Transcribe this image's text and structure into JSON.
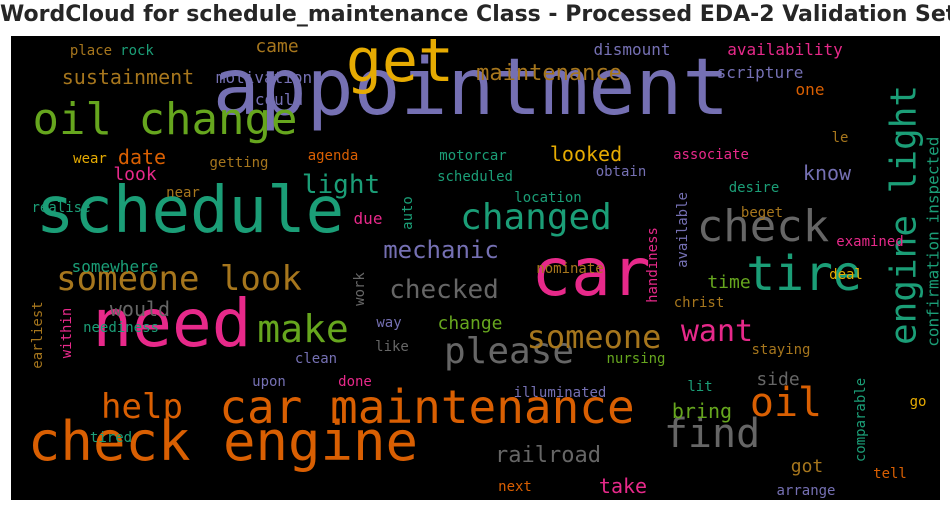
{
  "title": "WordCloud for schedule_maintenance Class - Processed EDA-2 Validation Set",
  "chart_data": {
    "type": "wordcloud",
    "background": "#000000",
    "palette": {
      "purple": "#7570b3",
      "green": "#1b9e77",
      "orange": "#d95f02",
      "pink": "#e7298a",
      "lime": "#66a61e",
      "gold": "#e6ab02",
      "brown": "#a6761d",
      "gray": "#666666"
    },
    "words": [
      {
        "text": "appointment",
        "color": "purple",
        "rotate": false
      },
      {
        "text": "schedule",
        "color": "green",
        "rotate": false
      },
      {
        "text": "need",
        "color": "pink",
        "rotate": false
      },
      {
        "text": "car",
        "color": "pink",
        "rotate": false
      },
      {
        "text": "check engine",
        "color": "orange",
        "rotate": false
      },
      {
        "text": "get",
        "color": "gold",
        "rotate": false
      },
      {
        "text": "engine light",
        "color": "green",
        "rotate": true
      },
      {
        "text": "car maintenance",
        "color": "orange",
        "rotate": false
      },
      {
        "text": "oil change",
        "color": "lime",
        "rotate": false
      },
      {
        "text": "check",
        "color": "gray",
        "rotate": false
      },
      {
        "text": "tire",
        "color": "green",
        "rotate": false
      },
      {
        "text": "someone look",
        "color": "brown",
        "rotate": false
      },
      {
        "text": "changed",
        "color": "green",
        "rotate": false
      },
      {
        "text": "make",
        "color": "lime",
        "rotate": false
      },
      {
        "text": "please",
        "color": "gray",
        "rotate": false
      },
      {
        "text": "find",
        "color": "gray",
        "rotate": false
      },
      {
        "text": "help",
        "color": "orange",
        "rotate": false
      },
      {
        "text": "oil",
        "color": "orange",
        "rotate": false
      },
      {
        "text": "someone",
        "color": "brown",
        "rotate": false
      },
      {
        "text": "maintenance",
        "color": "brown",
        "rotate": false
      },
      {
        "text": "checked",
        "color": "gray",
        "rotate": false
      },
      {
        "text": "want",
        "color": "pink",
        "rotate": false
      },
      {
        "text": "light",
        "color": "green",
        "rotate": false
      },
      {
        "text": "mechanic",
        "color": "purple",
        "rotate": false
      },
      {
        "text": "sustainment",
        "color": "brown",
        "rotate": false
      },
      {
        "text": "railroad",
        "color": "gray",
        "rotate": false
      },
      {
        "text": "looked",
        "color": "gold",
        "rotate": false
      },
      {
        "text": "know",
        "color": "purple",
        "rotate": false
      },
      {
        "text": "date",
        "color": "orange",
        "rotate": false
      },
      {
        "text": "would",
        "color": "gray",
        "rotate": false
      },
      {
        "text": "time",
        "color": "lime",
        "rotate": false
      },
      {
        "text": "came",
        "color": "brown",
        "rotate": false
      },
      {
        "text": "bring",
        "color": "lime",
        "rotate": false
      },
      {
        "text": "got",
        "color": "brown",
        "rotate": false
      },
      {
        "text": "take",
        "color": "pink",
        "rotate": false
      },
      {
        "text": "side",
        "color": "gray",
        "rotate": false
      },
      {
        "text": "change",
        "color": "lime",
        "rotate": false
      },
      {
        "text": "look",
        "color": "pink",
        "rotate": false
      },
      {
        "text": "somewhere",
        "color": "green",
        "rotate": false
      },
      {
        "text": "inspected",
        "color": "green",
        "rotate": true
      },
      {
        "text": "confirmation",
        "color": "green",
        "rotate": true
      },
      {
        "text": "availability",
        "color": "pink",
        "rotate": false
      },
      {
        "text": "dismount",
        "color": "purple",
        "rotate": false
      },
      {
        "text": "scripture",
        "color": "purple",
        "rotate": false
      },
      {
        "text": "motivation",
        "color": "purple",
        "rotate": false
      },
      {
        "text": "place",
        "color": "brown",
        "rotate": false
      },
      {
        "text": "rock",
        "color": "green",
        "rotate": false
      },
      {
        "text": "could",
        "color": "purple",
        "rotate": false
      },
      {
        "text": "one",
        "color": "orange",
        "rotate": false
      },
      {
        "text": "le",
        "color": "brown",
        "rotate": false
      },
      {
        "text": "associate",
        "color": "pink",
        "rotate": false
      },
      {
        "text": "wear",
        "color": "gold",
        "rotate": false
      },
      {
        "text": "getting",
        "color": "brown",
        "rotate": false
      },
      {
        "text": "agenda",
        "color": "orange",
        "rotate": false
      },
      {
        "text": "motorcar",
        "color": "green",
        "rotate": false
      },
      {
        "text": "obtain",
        "color": "purple",
        "rotate": false
      },
      {
        "text": "scheduled",
        "color": "green",
        "rotate": false
      },
      {
        "text": "desire",
        "color": "green",
        "rotate": false
      },
      {
        "text": "near",
        "color": "brown",
        "rotate": false
      },
      {
        "text": "location",
        "color": "green",
        "rotate": false
      },
      {
        "text": "realise",
        "color": "green",
        "rotate": false
      },
      {
        "text": "auto",
        "color": "green",
        "rotate": true
      },
      {
        "text": "available",
        "color": "purple",
        "rotate": true
      },
      {
        "text": "handiness",
        "color": "pink",
        "rotate": true
      },
      {
        "text": "beget",
        "color": "brown",
        "rotate": false
      },
      {
        "text": "due",
        "color": "pink",
        "rotate": false
      },
      {
        "text": "examined",
        "color": "pink",
        "rotate": false
      },
      {
        "text": "nominate",
        "color": "brown",
        "rotate": false
      },
      {
        "text": "deal",
        "color": "gold",
        "rotate": false
      },
      {
        "text": "work",
        "color": "gray",
        "rotate": true
      },
      {
        "text": "christ",
        "color": "brown",
        "rotate": false
      },
      {
        "text": "earliest",
        "color": "brown",
        "rotate": true
      },
      {
        "text": "neediness",
        "color": "green",
        "rotate": false
      },
      {
        "text": "way",
        "color": "purple",
        "rotate": false
      },
      {
        "text": "within",
        "color": "pink",
        "rotate": true
      },
      {
        "text": "like",
        "color": "gray",
        "rotate": false
      },
      {
        "text": "staying",
        "color": "brown",
        "rotate": false
      },
      {
        "text": "clean",
        "color": "purple",
        "rotate": false
      },
      {
        "text": "nursing",
        "color": "lime",
        "rotate": false
      },
      {
        "text": "upon",
        "color": "purple",
        "rotate": false
      },
      {
        "text": "done",
        "color": "pink",
        "rotate": false
      },
      {
        "text": "illuminated",
        "color": "purple",
        "rotate": false
      },
      {
        "text": "lit",
        "color": "green",
        "rotate": false
      },
      {
        "text": "comparable",
        "color": "green",
        "rotate": true
      },
      {
        "text": "go",
        "color": "gold",
        "rotate": false
      },
      {
        "text": "tired",
        "color": "green",
        "rotate": false
      },
      {
        "text": "next",
        "color": "orange",
        "rotate": false
      },
      {
        "text": "arrange",
        "color": "purple",
        "rotate": false
      },
      {
        "text": "tell",
        "color": "orange",
        "rotate": false
      }
    ]
  }
}
